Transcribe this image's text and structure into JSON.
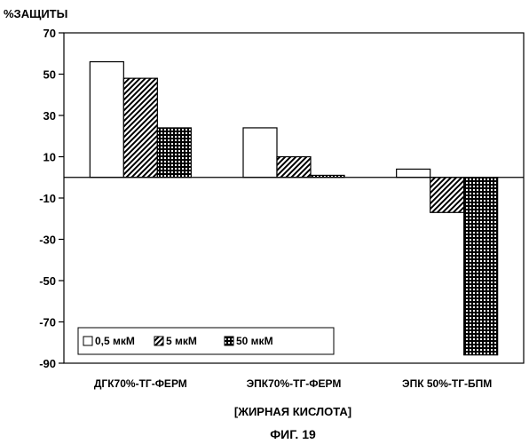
{
  "chart_data": {
    "type": "bar",
    "ylabel": "%ЗАЩИТЫ",
    "xlabel": "[ЖИРНАЯ КИСЛОТА]",
    "caption": "ФИГ. 19",
    "categories": [
      "ДГК70%-ТГ-ФЕРМ",
      "ЭПК70%-ТГ-ФЕРМ",
      "ЭПК 50%-ТГ-БПМ"
    ],
    "series": [
      {
        "name": "0,5 мкМ",
        "pattern": "plain",
        "values": [
          56,
          24,
          4
        ]
      },
      {
        "name": "5 мкМ",
        "pattern": "diagonal-hatch",
        "values": [
          48,
          10,
          -17
        ]
      },
      {
        "name": "50 мкМ",
        "pattern": "grid-hatch",
        "values": [
          24,
          1,
          -86
        ]
      }
    ],
    "ylim": [
      -90,
      70
    ],
    "yticks": [
      70,
      50,
      30,
      10,
      -10,
      -30,
      -50,
      -70,
      -90
    ],
    "grid": false,
    "legend_position": "bottom-left inside plot"
  }
}
